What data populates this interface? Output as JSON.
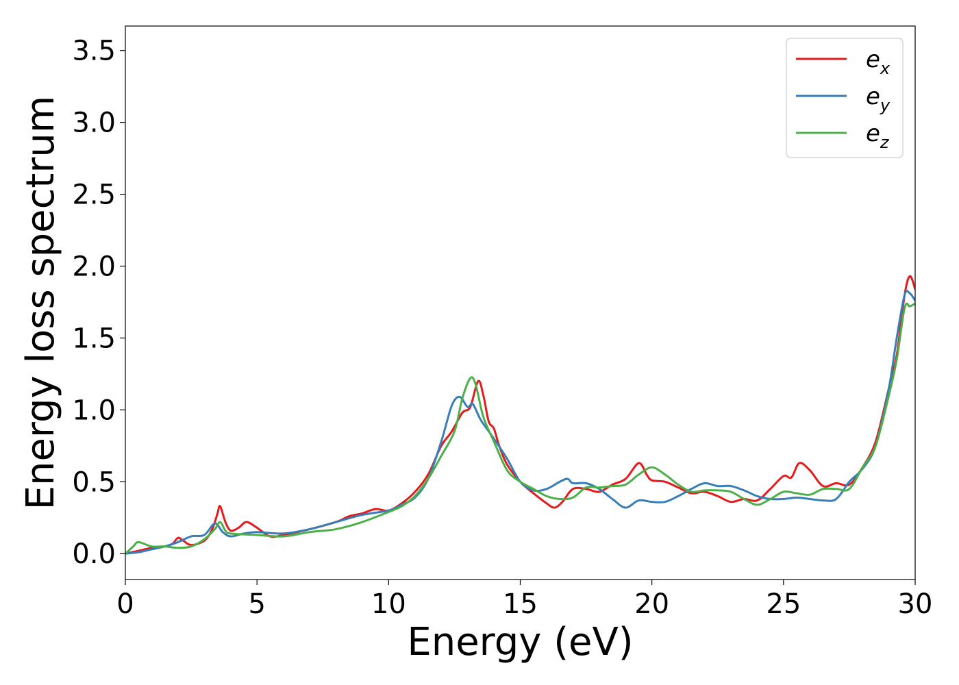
{
  "chart_data": {
    "type": "line",
    "title": "",
    "xlabel": "Energy (eV)",
    "ylabel": "Energy loss spectrum",
    "xlim": [
      0,
      30
    ],
    "ylim": [
      -0.18,
      3.67
    ],
    "xticks": [
      0,
      5,
      10,
      15,
      20,
      25,
      30
    ],
    "yticks": [
      0.0,
      0.5,
      1.0,
      1.5,
      2.0,
      2.5,
      3.0,
      3.5
    ],
    "xtick_labels": [
      "0",
      "5",
      "10",
      "15",
      "20",
      "25",
      "30"
    ],
    "ytick_labels": [
      "0.0",
      "0.5",
      "1.0",
      "1.5",
      "2.0",
      "2.5",
      "3.0",
      "3.5"
    ],
    "grid": false,
    "legend_position": "top-right",
    "series": [
      {
        "name": "e_x",
        "legend_base": "e",
        "legend_sub": "x",
        "color": "#e41a1c",
        "points": [
          [
            0,
            0.0
          ],
          [
            0.5,
            0.02
          ],
          [
            1.0,
            0.04
          ],
          [
            1.5,
            0.05
          ],
          [
            1.8,
            0.07
          ],
          [
            2.0,
            0.11
          ],
          [
            2.2,
            0.09
          ],
          [
            2.5,
            0.06
          ],
          [
            3.0,
            0.09
          ],
          [
            3.3,
            0.17
          ],
          [
            3.5,
            0.28
          ],
          [
            3.6,
            0.33
          ],
          [
            3.8,
            0.22
          ],
          [
            4.0,
            0.16
          ],
          [
            4.3,
            0.18
          ],
          [
            4.6,
            0.22
          ],
          [
            5.0,
            0.18
          ],
          [
            5.5,
            0.12
          ],
          [
            6.0,
            0.13
          ],
          [
            7.0,
            0.17
          ],
          [
            8.0,
            0.22
          ],
          [
            8.5,
            0.26
          ],
          [
            9.0,
            0.28
          ],
          [
            9.5,
            0.31
          ],
          [
            10.0,
            0.3
          ],
          [
            10.5,
            0.35
          ],
          [
            11.0,
            0.43
          ],
          [
            11.5,
            0.55
          ],
          [
            12.0,
            0.75
          ],
          [
            12.4,
            0.85
          ],
          [
            12.8,
            0.98
          ],
          [
            13.1,
            1.02
          ],
          [
            13.4,
            1.2
          ],
          [
            13.6,
            1.1
          ],
          [
            13.8,
            0.92
          ],
          [
            14.0,
            0.87
          ],
          [
            14.2,
            0.75
          ],
          [
            14.5,
            0.62
          ],
          [
            15.0,
            0.5
          ],
          [
            15.5,
            0.42
          ],
          [
            16.0,
            0.35
          ],
          [
            16.3,
            0.32
          ],
          [
            16.6,
            0.36
          ],
          [
            17.0,
            0.45
          ],
          [
            17.5,
            0.45
          ],
          [
            18.0,
            0.43
          ],
          [
            18.5,
            0.48
          ],
          [
            19.0,
            0.52
          ],
          [
            19.5,
            0.63
          ],
          [
            19.8,
            0.55
          ],
          [
            20.0,
            0.51
          ],
          [
            20.5,
            0.5
          ],
          [
            21.0,
            0.46
          ],
          [
            21.5,
            0.42
          ],
          [
            22.0,
            0.43
          ],
          [
            22.5,
            0.4
          ],
          [
            23.0,
            0.36
          ],
          [
            23.5,
            0.38
          ],
          [
            24.0,
            0.37
          ],
          [
            24.5,
            0.45
          ],
          [
            25.0,
            0.54
          ],
          [
            25.3,
            0.53
          ],
          [
            25.6,
            0.63
          ],
          [
            26.0,
            0.58
          ],
          [
            26.5,
            0.47
          ],
          [
            27.0,
            0.49
          ],
          [
            27.5,
            0.48
          ],
          [
            28.0,
            0.6
          ],
          [
            28.5,
            0.78
          ],
          [
            29.0,
            1.15
          ],
          [
            29.3,
            1.38
          ],
          [
            29.6,
            1.8
          ],
          [
            29.8,
            1.93
          ],
          [
            30.0,
            1.84
          ]
        ]
      },
      {
        "name": "e_y",
        "legend_base": "e",
        "legend_sub": "y",
        "color": "#377eb8",
        "points": [
          [
            0,
            0.0
          ],
          [
            0.5,
            0.01
          ],
          [
            1.0,
            0.03
          ],
          [
            1.5,
            0.05
          ],
          [
            2.0,
            0.08
          ],
          [
            2.5,
            0.12
          ],
          [
            3.0,
            0.13
          ],
          [
            3.4,
            0.21
          ],
          [
            3.7,
            0.15
          ],
          [
            4.0,
            0.12
          ],
          [
            4.5,
            0.14
          ],
          [
            5.0,
            0.15
          ],
          [
            6.0,
            0.14
          ],
          [
            7.0,
            0.17
          ],
          [
            8.0,
            0.22
          ],
          [
            9.0,
            0.27
          ],
          [
            10.0,
            0.3
          ],
          [
            10.5,
            0.34
          ],
          [
            11.0,
            0.39
          ],
          [
            11.5,
            0.52
          ],
          [
            12.0,
            0.78
          ],
          [
            12.4,
            1.03
          ],
          [
            12.7,
            1.09
          ],
          [
            13.0,
            1.02
          ],
          [
            13.2,
            1.04
          ],
          [
            13.5,
            0.93
          ],
          [
            14.0,
            0.8
          ],
          [
            14.5,
            0.66
          ],
          [
            15.0,
            0.5
          ],
          [
            15.5,
            0.44
          ],
          [
            16.0,
            0.45
          ],
          [
            16.5,
            0.5
          ],
          [
            16.8,
            0.52
          ],
          [
            17.0,
            0.49
          ],
          [
            17.5,
            0.49
          ],
          [
            18.0,
            0.45
          ],
          [
            18.5,
            0.38
          ],
          [
            19.0,
            0.32
          ],
          [
            19.5,
            0.37
          ],
          [
            20.0,
            0.36
          ],
          [
            20.5,
            0.36
          ],
          [
            21.0,
            0.4
          ],
          [
            21.5,
            0.45
          ],
          [
            22.0,
            0.49
          ],
          [
            22.5,
            0.47
          ],
          [
            23.0,
            0.47
          ],
          [
            23.5,
            0.44
          ],
          [
            24.0,
            0.4
          ],
          [
            24.5,
            0.38
          ],
          [
            25.0,
            0.38
          ],
          [
            25.5,
            0.39
          ],
          [
            26.0,
            0.38
          ],
          [
            26.5,
            0.37
          ],
          [
            27.0,
            0.38
          ],
          [
            27.5,
            0.5
          ],
          [
            28.0,
            0.59
          ],
          [
            28.5,
            0.75
          ],
          [
            29.0,
            1.15
          ],
          [
            29.3,
            1.5
          ],
          [
            29.6,
            1.8
          ],
          [
            29.8,
            1.81
          ],
          [
            30.0,
            1.76
          ]
        ]
      },
      {
        "name": "e_z",
        "legend_base": "e",
        "legend_sub": "z",
        "color": "#4daf4a",
        "points": [
          [
            0,
            0.0
          ],
          [
            0.3,
            0.05
          ],
          [
            0.5,
            0.08
          ],
          [
            1.0,
            0.05
          ],
          [
            1.5,
            0.05
          ],
          [
            2.0,
            0.04
          ],
          [
            2.5,
            0.05
          ],
          [
            3.0,
            0.1
          ],
          [
            3.4,
            0.17
          ],
          [
            3.6,
            0.22
          ],
          [
            3.8,
            0.16
          ],
          [
            4.0,
            0.14
          ],
          [
            5.0,
            0.13
          ],
          [
            6.0,
            0.12
          ],
          [
            7.0,
            0.15
          ],
          [
            8.0,
            0.17
          ],
          [
            9.0,
            0.22
          ],
          [
            10.0,
            0.29
          ],
          [
            10.5,
            0.33
          ],
          [
            11.0,
            0.4
          ],
          [
            11.5,
            0.52
          ],
          [
            12.0,
            0.68
          ],
          [
            12.5,
            0.85
          ],
          [
            12.8,
            1.08
          ],
          [
            13.1,
            1.22
          ],
          [
            13.3,
            1.18
          ],
          [
            13.6,
            0.95
          ],
          [
            14.0,
            0.78
          ],
          [
            14.5,
            0.58
          ],
          [
            15.0,
            0.5
          ],
          [
            15.5,
            0.45
          ],
          [
            16.0,
            0.4
          ],
          [
            16.5,
            0.38
          ],
          [
            17.0,
            0.39
          ],
          [
            17.5,
            0.46
          ],
          [
            18.0,
            0.46
          ],
          [
            18.5,
            0.47
          ],
          [
            19.0,
            0.48
          ],
          [
            19.5,
            0.55
          ],
          [
            20.0,
            0.6
          ],
          [
            20.5,
            0.55
          ],
          [
            21.0,
            0.48
          ],
          [
            21.5,
            0.43
          ],
          [
            22.0,
            0.44
          ],
          [
            22.5,
            0.44
          ],
          [
            23.0,
            0.43
          ],
          [
            23.5,
            0.38
          ],
          [
            24.0,
            0.34
          ],
          [
            24.5,
            0.38
          ],
          [
            25.0,
            0.43
          ],
          [
            25.5,
            0.42
          ],
          [
            26.0,
            0.41
          ],
          [
            26.5,
            0.45
          ],
          [
            27.0,
            0.45
          ],
          [
            27.5,
            0.45
          ],
          [
            28.0,
            0.6
          ],
          [
            28.5,
            0.75
          ],
          [
            29.0,
            1.1
          ],
          [
            29.3,
            1.35
          ],
          [
            29.6,
            1.71
          ],
          [
            29.8,
            1.72
          ],
          [
            30.0,
            1.74
          ]
        ]
      }
    ]
  }
}
